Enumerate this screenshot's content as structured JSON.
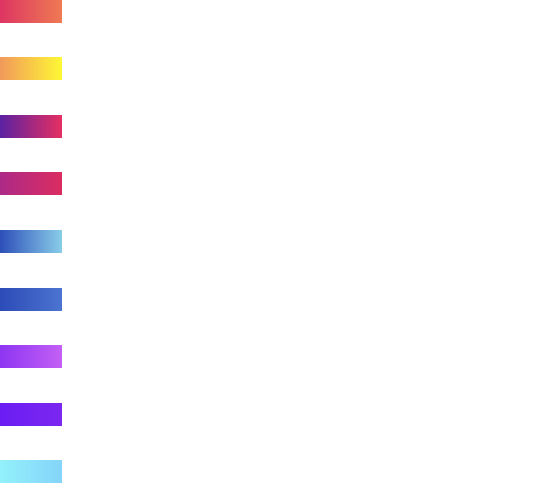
{
  "swatches": [
    {
      "id": "rose-coral",
      "from": "#dd3562",
      "to": "#ef7a53"
    },
    {
      "id": "orange-yellow",
      "from": "#f2995b",
      "to": "#fef834"
    },
    {
      "id": "indigo-pink",
      "from": "#5b21a1",
      "to": "#e52f62"
    },
    {
      "id": "magenta-pink",
      "from": "#ac2a86",
      "to": "#db2c61"
    },
    {
      "id": "blue-skyblue",
      "from": "#2d4fb9",
      "to": "#89cde8"
    },
    {
      "id": "blue",
      "from": "#2c4bb7",
      "to": "#4b74d0"
    },
    {
      "id": "violet-orchid",
      "from": "#8d35f2",
      "to": "#c360f5"
    },
    {
      "id": "violet",
      "from": "#6a1df3",
      "to": "#7b27f0"
    },
    {
      "id": "cyan-light",
      "from": "#92f1fb",
      "to": "#85d4f9"
    }
  ]
}
